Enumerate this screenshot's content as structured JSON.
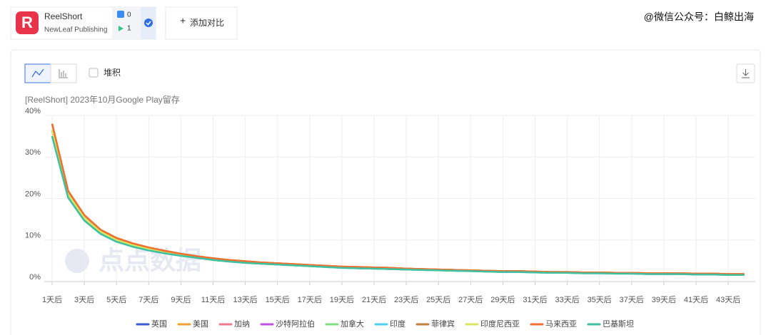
{
  "header": {
    "app_name": "ReelShort",
    "publisher": "NewLeaf Publishing",
    "ios_count": 0,
    "android_count": 1,
    "add_compare": "添加对比",
    "watermark": "@微信公众号：白鲸出海"
  },
  "toolbar": {
    "stack_label": "堆积"
  },
  "logo_watermark": "点点数据",
  "chart_data": {
    "type": "line",
    "title": "[ReelShort]  2023年10月Google Play留存",
    "categories": [
      "1天后",
      null,
      "3天后",
      null,
      "5天后",
      null,
      "7天后",
      null,
      "9天后",
      null,
      "11天后",
      null,
      "13天后",
      null,
      "15天后",
      null,
      "17天后",
      null,
      "19天后",
      null,
      "21天后",
      null,
      "23天后",
      null,
      "25天后",
      null,
      "27天后",
      null,
      "29天后",
      null,
      "31天后",
      null,
      "33天后",
      null,
      "35天后",
      null,
      "37天后",
      null,
      "39天后",
      null,
      "41天后",
      null,
      "43天后",
      null
    ],
    "ylim": [
      0,
      40
    ],
    "yticks": [
      {
        "value": 0,
        "label": "0%"
      },
      {
        "value": 10,
        "label": "10%"
      },
      {
        "value": 20,
        "label": "20%"
      },
      {
        "value": 30,
        "label": "30%"
      },
      {
        "value": 40,
        "label": "40%"
      }
    ],
    "grid": true,
    "legend": "bottom",
    "series": [
      {
        "name": "英国",
        "color": "#3a5bd9",
        "values": [
          36.5,
          21,
          15.3,
          12,
          10,
          8.8,
          7.8,
          7,
          6.4,
          5.9,
          5.4,
          5.0,
          4.7,
          4.4,
          4.2,
          4.0,
          3.8,
          3.6,
          3.4,
          3.3,
          3.2,
          3.1,
          3.0,
          2.9,
          2.8,
          2.7,
          2.6,
          2.5,
          2.4,
          2.4,
          2.3,
          2.2,
          2.2,
          2.1,
          2.1,
          2.0,
          2.0,
          1.9,
          1.9,
          1.9,
          1.8,
          1.8,
          1.7,
          1.7
        ]
      },
      {
        "name": "美国",
        "color": "#f0a030",
        "values": [
          38,
          21.8,
          16,
          12.5,
          10.5,
          9.2,
          8.2,
          7.4,
          6.7,
          6.1,
          5.6,
          5.2,
          4.9,
          4.6,
          4.4,
          4.2,
          4.0,
          3.8,
          3.6,
          3.5,
          3.4,
          3.3,
          3.1,
          3.0,
          2.9,
          2.8,
          2.7,
          2.6,
          2.5,
          2.5,
          2.4,
          2.3,
          2.3,
          2.2,
          2.2,
          2.1,
          2.1,
          2.0,
          2.0,
          2.0,
          1.9,
          1.9,
          1.8,
          1.8
        ]
      },
      {
        "name": "加纳",
        "color": "#f07890",
        "values": [
          36.5,
          21,
          15.3,
          12,
          10,
          8.8,
          7.8,
          7,
          6.4,
          5.9,
          5.4,
          5.0,
          4.7,
          4.4,
          4.2,
          4.0,
          3.8,
          3.6,
          3.4,
          3.3,
          3.2,
          3.1,
          3.0,
          2.9,
          2.8,
          2.7,
          2.6,
          2.5,
          2.4,
          2.4,
          2.3,
          2.2,
          2.2,
          2.1,
          2.1,
          2.0,
          2.0,
          1.9,
          1.9,
          1.9,
          1.8,
          1.8,
          1.7,
          1.7
        ]
      },
      {
        "name": "沙特阿拉伯",
        "color": "#c050e0",
        "values": [
          36.5,
          21,
          15.3,
          12,
          10,
          8.8,
          7.8,
          7,
          6.4,
          5.9,
          5.4,
          5.0,
          4.7,
          4.4,
          4.2,
          4.0,
          3.8,
          3.6,
          3.4,
          3.3,
          3.2,
          3.1,
          3.0,
          2.9,
          2.8,
          2.7,
          2.6,
          2.5,
          2.4,
          2.4,
          2.3,
          2.2,
          2.2,
          2.1,
          2.1,
          2.0,
          2.0,
          1.9,
          1.9,
          1.9,
          1.8,
          1.8,
          1.7,
          1.7
        ]
      },
      {
        "name": "加拿大",
        "color": "#80e080",
        "values": [
          35,
          20.2,
          14.7,
          11.5,
          9.6,
          8.4,
          7.5,
          6.8,
          6.2,
          5.7,
          5.2,
          4.8,
          4.5,
          4.3,
          4.1,
          3.9,
          3.7,
          3.5,
          3.3,
          3.2,
          3.1,
          3.0,
          2.9,
          2.8,
          2.7,
          2.6,
          2.5,
          2.4,
          2.3,
          2.3,
          2.2,
          2.1,
          2.1,
          2.0,
          2.0,
          1.9,
          1.9,
          1.8,
          1.8,
          1.8,
          1.7,
          1.7,
          1.6,
          1.6
        ]
      },
      {
        "name": "印度",
        "color": "#50d0f0",
        "values": [
          35,
          20.2,
          14.7,
          11.5,
          9.6,
          8.4,
          7.5,
          6.8,
          6.2,
          5.7,
          5.2,
          4.8,
          4.5,
          4.3,
          4.1,
          3.9,
          3.7,
          3.5,
          3.3,
          3.2,
          3.1,
          3.0,
          2.9,
          2.8,
          2.7,
          2.6,
          2.5,
          2.4,
          2.3,
          2.3,
          2.2,
          2.1,
          2.1,
          2.0,
          2.0,
          1.9,
          1.9,
          1.8,
          1.8,
          1.8,
          1.7,
          1.7,
          1.6,
          1.6
        ]
      },
      {
        "name": "菲律宾",
        "color": "#c08040",
        "values": [
          38,
          21.8,
          16,
          12.5,
          10.5,
          9.2,
          8.2,
          7.4,
          6.7,
          6.1,
          5.6,
          5.2,
          4.9,
          4.6,
          4.4,
          4.2,
          4.0,
          3.8,
          3.6,
          3.5,
          3.4,
          3.3,
          3.1,
          3.0,
          2.9,
          2.8,
          2.7,
          2.6,
          2.5,
          2.5,
          2.4,
          2.3,
          2.3,
          2.2,
          2.2,
          2.1,
          2.1,
          2.0,
          2.0,
          2.0,
          1.9,
          1.9,
          1.8,
          1.8
        ]
      },
      {
        "name": "印度尼西亚",
        "color": "#d8e860",
        "values": [
          36.5,
          21,
          15.3,
          12,
          10,
          8.8,
          7.8,
          7,
          6.4,
          5.9,
          5.4,
          5.0,
          4.7,
          4.4,
          4.2,
          4.0,
          3.8,
          3.6,
          3.4,
          3.3,
          3.2,
          3.1,
          3.0,
          2.9,
          2.8,
          2.7,
          2.6,
          2.5,
          2.4,
          2.4,
          2.3,
          2.2,
          2.2,
          2.1,
          2.1,
          2.0,
          2.0,
          1.9,
          1.9,
          1.9,
          1.8,
          1.8,
          1.7,
          1.7
        ]
      },
      {
        "name": "马来西亚",
        "color": "#f07030",
        "values": [
          38,
          21.8,
          16,
          12.5,
          10.5,
          9.2,
          8.2,
          7.4,
          6.7,
          6.1,
          5.6,
          5.2,
          4.9,
          4.6,
          4.4,
          4.2,
          4.0,
          3.8,
          3.6,
          3.5,
          3.4,
          3.3,
          3.1,
          3.0,
          2.9,
          2.8,
          2.7,
          2.6,
          2.5,
          2.5,
          2.4,
          2.3,
          2.3,
          2.2,
          2.2,
          2.1,
          2.1,
          2.0,
          2.0,
          2.0,
          1.9,
          1.9,
          1.8,
          1.8
        ]
      },
      {
        "name": "巴基斯坦",
        "color": "#40c0a0",
        "values": [
          35,
          20.2,
          14.7,
          11.5,
          9.6,
          8.4,
          7.5,
          6.8,
          6.2,
          5.7,
          5.2,
          4.8,
          4.5,
          4.3,
          4.1,
          3.9,
          3.7,
          3.5,
          3.3,
          3.2,
          3.1,
          3.0,
          2.9,
          2.8,
          2.7,
          2.6,
          2.5,
          2.4,
          2.3,
          2.3,
          2.2,
          2.1,
          2.1,
          2.0,
          2.0,
          1.9,
          1.9,
          1.8,
          1.8,
          1.8,
          1.7,
          1.7,
          1.6,
          1.6
        ]
      }
    ]
  }
}
